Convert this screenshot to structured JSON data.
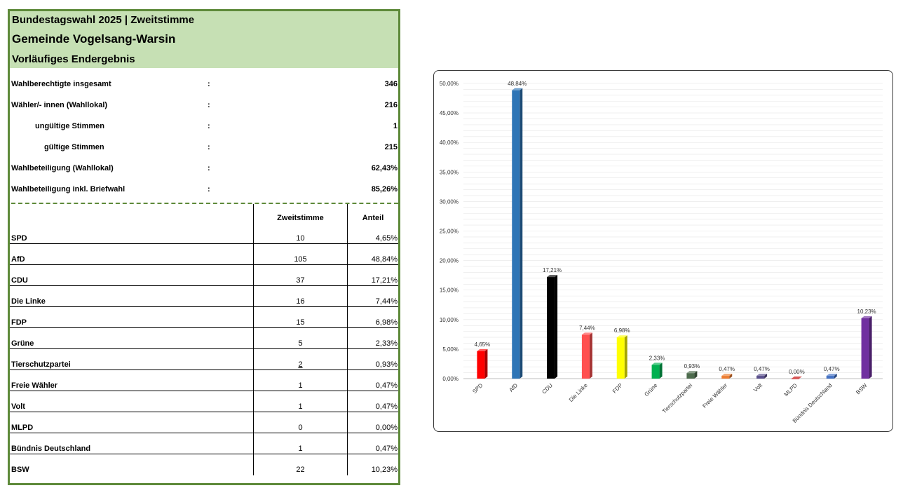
{
  "header": {
    "line1": "Bundestagswahl 2025  | Zweitstimme",
    "line2": "Gemeinde Vogelsang-Warsin",
    "line3": "Vorläufiges Endergebnis"
  },
  "summary": {
    "colon": ":",
    "rows": [
      {
        "label": "Wahlberechtigte insgesamt",
        "value": "346"
      },
      {
        "label": "Wähler/- innen (Wahllokal)",
        "value": "216"
      },
      {
        "label": "ungültige Stimmen",
        "value": "1"
      },
      {
        "label": "gültige Stimmen",
        "value": "215"
      },
      {
        "label": "Wahlbeteiligung (Wahllokal)",
        "value": "62,43%"
      },
      {
        "label": "Wahlbeteiligung inkl. Briefwahl",
        "value": "85,26%"
      }
    ]
  },
  "table": {
    "col_votes": "Zweitstimme",
    "col_share": "Anteil",
    "rows": [
      {
        "party": "SPD",
        "votes": "10",
        "share": "4,65%"
      },
      {
        "party": "AfD",
        "votes": "105",
        "share": "48,84%"
      },
      {
        "party": "CDU",
        "votes": "37",
        "share": "17,21%"
      },
      {
        "party": "Die Linke",
        "votes": "16",
        "share": "7,44%"
      },
      {
        "party": "FDP",
        "votes": "15",
        "share": "6,98%"
      },
      {
        "party": "Grüne",
        "votes": "5",
        "share": "2,33%"
      },
      {
        "party": "Tierschutzpartei",
        "votes": "2",
        "share": "0,93%"
      },
      {
        "party": "Freie Wähler",
        "votes": "1",
        "share": "0,47%"
      },
      {
        "party": "Volt",
        "votes": "1",
        "share": "0,47%"
      },
      {
        "party": "MLPD",
        "votes": "0",
        "share": "0,00%"
      },
      {
        "party": "Bündnis Deutschland",
        "votes": "1",
        "share": "0,47%"
      },
      {
        "party": "BSW",
        "votes": "22",
        "share": "10,23%"
      }
    ]
  },
  "chart_data": {
    "type": "bar",
    "categories": [
      "SPD",
      "AfD",
      "CDU",
      "Die Linke",
      "FDP",
      "Grüne",
      "Tierschutzpartei",
      "Freie Wähler",
      "Volt",
      "MLPD",
      "Bündnis Deutschland",
      "BSW"
    ],
    "values": [
      4.65,
      48.84,
      17.21,
      7.44,
      6.98,
      2.33,
      0.93,
      0.47,
      0.47,
      0.0,
      0.47,
      10.23
    ],
    "data_labels": [
      "4,65%",
      "48,84%",
      "17,21%",
      "7,44%",
      "6,98%",
      "2,33%",
      "0,93%",
      "0,47%",
      "0,47%",
      "0,00%",
      "0,47%",
      "10,23%"
    ],
    "colors": [
      "#ff0000",
      "#2e75b6",
      "#000000",
      "#ff5050",
      "#ffff00",
      "#00b050",
      "#4d6b4d",
      "#ed7d31",
      "#5a4f8c",
      "#c00000",
      "#4472c4",
      "#7030a0"
    ],
    "ylim": [
      0,
      50
    ],
    "yticks": [
      "0,00%",
      "5,00%",
      "10,00%",
      "15,00%",
      "20,00%",
      "25,00%",
      "30,00%",
      "35,00%",
      "40,00%",
      "45,00%",
      "50,00%"
    ],
    "grid": true,
    "title": "",
    "xlabel": "",
    "ylabel": ""
  }
}
